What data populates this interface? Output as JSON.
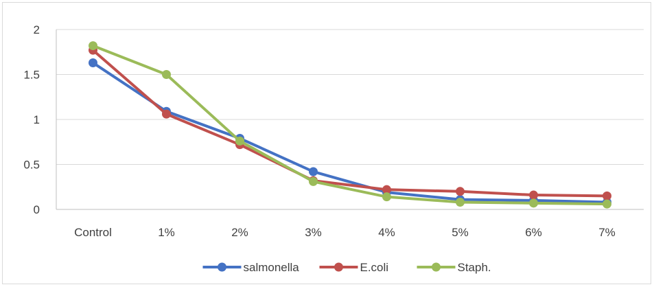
{
  "chart_data": {
    "type": "line",
    "title": "",
    "xlabel": "",
    "ylabel": "",
    "categories": [
      "Control",
      "1%",
      "2%",
      "3%",
      "4%",
      "5%",
      "6%",
      "7%"
    ],
    "ylim": [
      0,
      2
    ],
    "yticks": [
      "0",
      "0.5",
      "1",
      "1.5",
      "2"
    ],
    "grid": true,
    "legend_position": "bottom",
    "series": [
      {
        "name": "salmonella",
        "color": "#4472C4",
        "values": [
          1.63,
          1.09,
          0.79,
          0.42,
          0.19,
          0.11,
          0.1,
          0.08
        ]
      },
      {
        "name": "E.coli",
        "color": "#C0504D",
        "values": [
          1.77,
          1.06,
          0.72,
          0.32,
          0.22,
          0.2,
          0.16,
          0.15
        ]
      },
      {
        "name": "Staph.",
        "color": "#9BBB59",
        "values": [
          1.82,
          1.5,
          0.76,
          0.31,
          0.14,
          0.08,
          0.07,
          0.06
        ]
      }
    ]
  }
}
